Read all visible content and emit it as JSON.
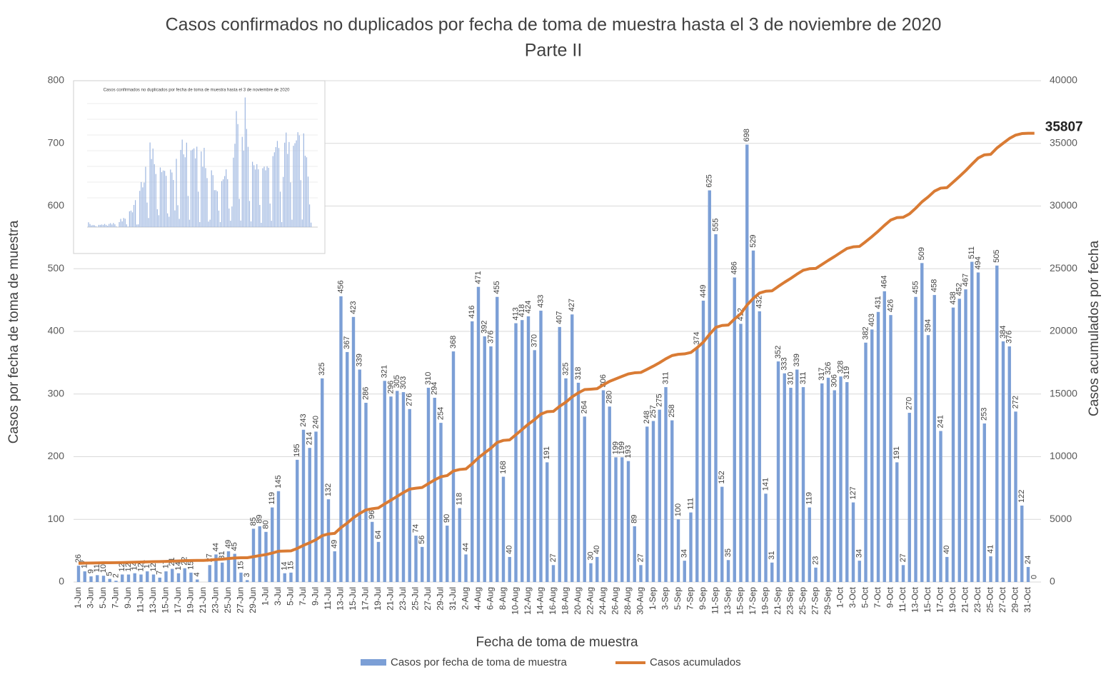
{
  "chart_data": {
    "type": "bar-line",
    "title": "Casos confirmados no duplicados por fecha de toma de muestra hasta el 3 de noviembre de 2020",
    "subtitle": "Parte II",
    "x_label": "Fecha de toma de muestra",
    "y_label": "Casos por fecha de toma de muestra",
    "y2_label": "Casos acumulados por fecha",
    "inset_title": "Casos confirmados no duplicados por fecha de toma de muestra hasta el 3 de noviembre de 2020",
    "categories": [
      "1-Jun",
      null,
      "3-Jun",
      null,
      "5-Jun",
      null,
      "7-Jun",
      null,
      "9-Jun",
      null,
      "11-Jun",
      null,
      "13-Jun",
      null,
      "15-Jun",
      null,
      "17-Jun",
      null,
      "19-Jun",
      null,
      "21-Jun",
      null,
      "23-Jun",
      null,
      "25-Jun",
      null,
      "27-Jun",
      null,
      "29-Jun",
      null,
      "1-Jul",
      null,
      "3-Jul",
      null,
      "5-Jul",
      null,
      "7-Jul",
      null,
      "9-Jul",
      null,
      "11-Jul",
      null,
      "13-Jul",
      null,
      "15-Jul",
      null,
      "17-Jul",
      null,
      "19-Jul",
      null,
      "21-Jul",
      null,
      "23-Jul",
      null,
      "25-Jul",
      null,
      "27-Jul",
      null,
      "29-Jul",
      null,
      "31-Jul",
      null,
      "2-Aug",
      null,
      "4-Aug",
      null,
      "6-Aug",
      null,
      "8-Aug",
      null,
      "10-Aug",
      null,
      "12-Aug",
      null,
      "14-Aug",
      null,
      "16-Aug",
      null,
      "18-Aug",
      null,
      "20-Aug",
      null,
      "22-Aug",
      null,
      "24-Aug",
      null,
      "26-Aug",
      null,
      "28-Aug",
      null,
      "30-Aug",
      null,
      "1-Sep",
      null,
      "3-Sep",
      null,
      "5-Sep",
      null,
      "7-Sep",
      null,
      "9-Sep",
      null,
      "11-Sep",
      null,
      "13-Sep",
      null,
      "15-Sep",
      null,
      "17-Sep",
      null,
      "19-Sep",
      null,
      "21-Sep",
      null,
      "23-Sep",
      null,
      "25-Sep",
      null,
      "27-Sep",
      null,
      "29-Sep",
      null,
      "1-Oct",
      null,
      "3-Oct",
      null,
      "5-Oct",
      null,
      "7-Oct",
      null,
      "9-Oct",
      null,
      "11-Oct",
      null,
      "13-Oct",
      null,
      "15-Oct",
      null,
      "17-Oct",
      null,
      "19-Oct",
      null,
      "21-Oct",
      null,
      "23-Oct",
      null,
      "25-Oct",
      null,
      "27-Oct",
      null,
      "29-Oct",
      null,
      "31-Oct",
      null
    ],
    "series": [
      {
        "name": "Casos por fecha de toma de muestra",
        "color": "#7c9fd6",
        "axis": "y",
        "values": [
          26,
          17,
          9,
          11,
          10,
          5,
          2,
          12,
          12,
          14,
          12,
          17,
          12,
          7,
          17,
          21,
          14,
          22,
          15,
          4,
          null,
          27,
          44,
          31,
          49,
          45,
          15,
          3,
          85,
          89,
          80,
          119,
          145,
          14,
          15,
          195,
          243,
          214,
          240,
          325,
          132,
          49,
          456,
          367,
          423,
          339,
          286,
          96,
          64,
          321,
          296,
          305,
          303,
          276,
          74,
          56,
          310,
          294,
          254,
          90,
          368,
          118,
          44,
          416,
          471,
          392,
          376,
          455,
          168,
          40,
          413,
          418,
          424,
          370,
          433,
          191,
          27,
          407,
          325,
          427,
          318,
          264,
          30,
          40,
          306,
          280,
          199,
          199,
          193,
          89,
          27,
          248,
          257,
          275,
          311,
          258,
          100,
          34,
          111,
          374,
          449,
          625,
          555,
          152,
          35,
          486,
          412,
          698,
          529,
          432,
          141,
          31,
          352,
          333,
          310,
          339,
          311,
          119,
          23,
          317,
          326,
          306,
          328,
          319,
          127,
          34,
          382,
          403,
          431,
          464,
          426,
          191,
          27,
          270,
          455,
          509,
          394,
          458,
          241,
          40,
          438,
          452,
          467,
          511,
          494,
          253,
          41,
          505,
          384,
          376,
          272,
          122,
          24,
          0
        ]
      },
      {
        "name": "Casos acumulados",
        "color": "#d97b34",
        "axis": "y2",
        "values": [
          1490,
          1507,
          1516,
          1527,
          1537,
          1542,
          1544,
          1556,
          1568,
          1582,
          1594,
          1611,
          1623,
          1630,
          1647,
          1668,
          1682,
          1704,
          1719,
          1723,
          1723,
          1750,
          1794,
          1825,
          1874,
          1919,
          1934,
          1937,
          2022,
          2111,
          2191,
          2310,
          2455,
          2469,
          2484,
          2679,
          2922,
          3136,
          3376,
          3701,
          3833,
          3882,
          4338,
          4705,
          5128,
          5467,
          5753,
          5849,
          5913,
          6234,
          6530,
          6835,
          7138,
          7414,
          7488,
          7544,
          7854,
          8148,
          8402,
          8492,
          8860,
          8978,
          9022,
          9438,
          9909,
          10301,
          10677,
          11132,
          11300,
          11340,
          11753,
          12171,
          12595,
          12965,
          13398,
          13589,
          13616,
          14023,
          14348,
          14775,
          15093,
          15357,
          15387,
          15427,
          15733,
          16013,
          16212,
          16411,
          16604,
          16693,
          16720,
          16968,
          17225,
          17500,
          17811,
          18069,
          18169,
          18203,
          18314,
          18688,
          19137,
          19762,
          20317,
          20469,
          20504,
          20990,
          21402,
          22100,
          22629,
          23061,
          23202,
          23233,
          23585,
          23918,
          24228,
          24567,
          24878,
          24997,
          25020,
          25337,
          25663,
          25969,
          26297,
          26616,
          26743,
          26777,
          27159,
          27562,
          27993,
          28457,
          28883,
          29074,
          29101,
          29371,
          29826,
          30335,
          30729,
          31187,
          31428,
          31468,
          31906,
          32358,
          32825,
          33336,
          33830,
          34083,
          34124,
          34629,
          35013,
          35389,
          35661,
          35783,
          35807,
          35807
        ]
      }
    ],
    "ylim": [
      0,
      800
    ],
    "yticks": [
      0,
      100,
      200,
      300,
      400,
      500,
      600,
      700,
      800
    ],
    "y2lim": [
      0,
      40000
    ],
    "y2ticks": [
      0,
      5000,
      10000,
      15000,
      20000,
      25000,
      30000,
      35000,
      40000
    ],
    "grid": true,
    "legend": "bottom"
  }
}
